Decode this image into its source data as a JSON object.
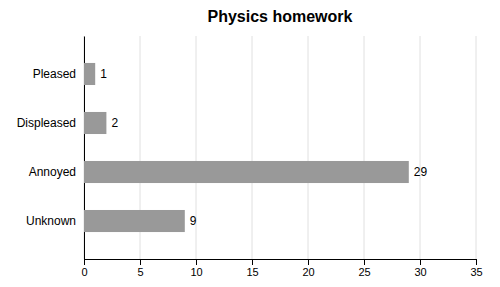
{
  "chart_data": {
    "type": "bar",
    "orientation": "horizontal",
    "title": "Physics homework",
    "categories": [
      "Pleased",
      "Displeased",
      "Annoyed",
      "Unknown"
    ],
    "values": [
      1,
      2,
      29,
      9
    ],
    "color": "#999999",
    "xlim": [
      0,
      35
    ],
    "xticks": [
      0,
      5,
      10,
      15,
      20,
      25,
      30,
      35
    ],
    "grid": true,
    "data_labels": true
  }
}
